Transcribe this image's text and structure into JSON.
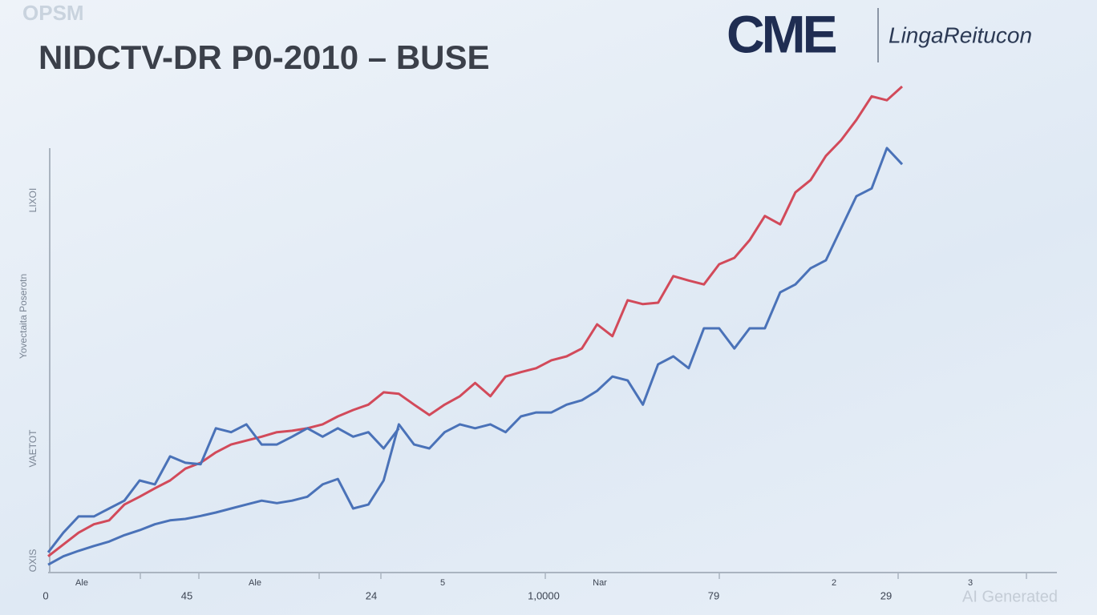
{
  "header": {
    "watermark_top": "OPSM",
    "logo": "CME",
    "brand": "LingaReitucon"
  },
  "chart_data": {
    "type": "line",
    "title": "NIDCTV-DR P0-2010 – BUSE",
    "y_axis_labels": [
      "LIXOI",
      "Yovectaita Poserotn",
      "VAETOT",
      "OXIS"
    ],
    "x_tick_labels": [
      "0",
      "Ale",
      "45",
      "Ale",
      "24",
      "5",
      "1,0000",
      "Nar",
      "79",
      "2",
      "29",
      "3"
    ],
    "ylim": [
      0,
      100
    ],
    "series": [
      {
        "color": "#d24a5a",
        "values": [
          3.3,
          5.7,
          8.1,
          9.8,
          10.6,
          13.8,
          15.4,
          17.1,
          18.7,
          21.1,
          22.3,
          24.4,
          26.0,
          26.8,
          27.6,
          28.5,
          28.8,
          29.3,
          30.1,
          31.7,
          33.0,
          34.1,
          36.6,
          36.3,
          34.1,
          32.0,
          34.1,
          35.8,
          38.5,
          35.8,
          39.8,
          40.7,
          41.5,
          43.1,
          43.9,
          45.5,
          50.4,
          48.0,
          55.3,
          54.5,
          54.8,
          60.2,
          59.3,
          58.5,
          62.6,
          63.9,
          67.5,
          72.4,
          70.7,
          77.2,
          79.7,
          84.6,
          87.8,
          91.9,
          96.7,
          95.9,
          98.7
        ]
      },
      {
        "color": "#4a72b8",
        "values": [
          1.6,
          3.3,
          4.4,
          5.4,
          6.3,
          7.6,
          8.6,
          9.8,
          10.6,
          10.9,
          11.5,
          12.2,
          13.0,
          13.8,
          14.6,
          14.1,
          14.6,
          15.4,
          17.9,
          19.0,
          13.0,
          13.8,
          18.7,
          30.1,
          26.0,
          25.2,
          28.5,
          30.1,
          29.3,
          30.1,
          28.5,
          31.7,
          32.5,
          32.5,
          34.1,
          35.0,
          36.9,
          39.8,
          39.0,
          34.1,
          42.3,
          43.9,
          41.5,
          49.6,
          49.6,
          45.5,
          49.6,
          49.6,
          56.9,
          58.5,
          61.8,
          63.4,
          69.9,
          76.4,
          78.0,
          86.2,
          82.9
        ]
      },
      {
        "color": "#4a72b8",
        "values": [
          4.1,
          8.1,
          11.4,
          11.4,
          13.0,
          14.6,
          18.7,
          17.9,
          23.6,
          22.3,
          22.0,
          29.3,
          28.5,
          30.1,
          26.0,
          26.0,
          27.6,
          29.3,
          27.6,
          29.3,
          27.6,
          28.5,
          25.2,
          29.3,
          null,
          null,
          null,
          null,
          null,
          null,
          null,
          null,
          null,
          null,
          null,
          null,
          null,
          null,
          null,
          null,
          null,
          null,
          null,
          null,
          null,
          null,
          null,
          null,
          null,
          null,
          null,
          null,
          null,
          null,
          null,
          null,
          null
        ]
      }
    ]
  },
  "footer": {
    "watermark": "AI Generated"
  }
}
